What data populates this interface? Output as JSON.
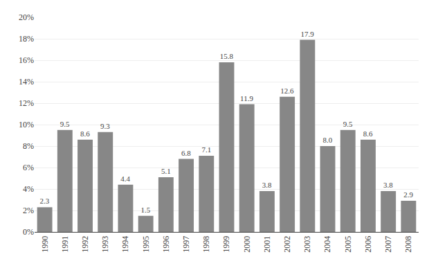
{
  "chart_data": {
    "type": "bar",
    "categories": [
      "1990",
      "1991",
      "1992",
      "1993",
      "1994",
      "1995",
      "1996",
      "1997",
      "1998",
      "1999",
      "2000",
      "2001",
      "2002",
      "2003",
      "2004",
      "2005",
      "2006",
      "2007",
      "2008"
    ],
    "values": [
      2.3,
      9.5,
      8.6,
      9.3,
      4.4,
      1.5,
      5.1,
      6.8,
      7.1,
      15.8,
      11.9,
      3.8,
      12.6,
      17.9,
      8.0,
      9.5,
      8.6,
      3.8,
      2.9
    ],
    "value_labels": [
      "2.3",
      "9.5",
      "8.6",
      "9.3",
      "4.4",
      "1.5",
      "5.1",
      "6.8",
      "7.1",
      "15.8",
      "11.9",
      "3.8",
      "12.6",
      "17.9",
      "8.0",
      "9.5",
      "8.6",
      "3.8",
      "2.9"
    ],
    "data_labels": true,
    "color": "#878787",
    "ylim": [
      0,
      20
    ],
    "yticks": [
      {
        "value": 0,
        "label": "0%"
      },
      {
        "value": 2,
        "label": "2%"
      },
      {
        "value": 4,
        "label": "4%"
      },
      {
        "value": 6,
        "label": "6%"
      },
      {
        "value": 8,
        "label": "8%"
      },
      {
        "value": 10,
        "label": "10%"
      },
      {
        "value": 12,
        "label": "12%"
      },
      {
        "value": 14,
        "label": "14%"
      },
      {
        "value": 16,
        "label": "16%"
      },
      {
        "value": 18,
        "label": "18%"
      },
      {
        "value": 20,
        "label": "20%"
      }
    ],
    "grid": true
  }
}
